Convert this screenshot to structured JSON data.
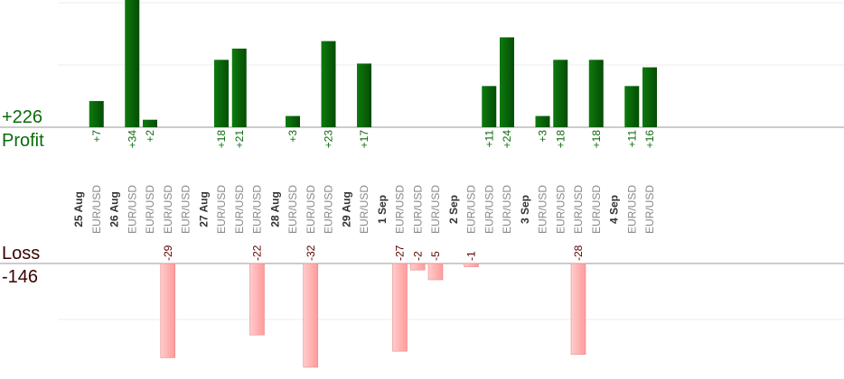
{
  "summary": {
    "profit_total": "+226",
    "profit_label": "Profit",
    "loss_label": "Loss",
    "loss_total": "-146"
  },
  "colors": {
    "profit": "#0a6b0a",
    "loss": "#ffb3b3",
    "profit_text": "#0a6b0a",
    "date_text": "#333333",
    "symbol_text": "#888888"
  },
  "chart_data": {
    "type": "bar",
    "grid": true,
    "profit_ylim": [
      0,
      34
    ],
    "loss_ylim": [
      -40,
      0
    ],
    "dates": [
      "25 Aug",
      "26 Aug",
      "27 Aug",
      "28 Aug",
      "29 Aug",
      "1 Sep",
      "2 Sep",
      "3 Sep",
      "4 Sep"
    ],
    "trades": [
      {
        "date": "25 Aug",
        "symbol": "EUR/USD",
        "profit": "+7",
        "value": 7
      },
      {
        "date": "26 Aug",
        "symbol": "EUR/USD",
        "profit": "+34",
        "value": 34
      },
      {
        "date": "26 Aug",
        "symbol": "EUR/USD",
        "profit": "+2",
        "value": 2
      },
      {
        "date": "26 Aug",
        "symbol": "EUR/USD",
        "profit": "-29",
        "value": -29
      },
      {
        "date": "26 Aug",
        "symbol": "EUR/USD",
        "profit": "",
        "value": 0
      },
      {
        "date": "27 Aug",
        "symbol": "EUR/USD",
        "profit": "+18",
        "value": 18
      },
      {
        "date": "27 Aug",
        "symbol": "EUR/USD",
        "profit": "+21",
        "value": 21
      },
      {
        "date": "27 Aug",
        "symbol": "EUR/USD",
        "profit": "-22",
        "value": -22
      },
      {
        "date": "28 Aug",
        "symbol": "EUR/USD",
        "profit": "+3",
        "value": 3
      },
      {
        "date": "28 Aug",
        "symbol": "EUR/USD",
        "profit": "-32",
        "value": -32
      },
      {
        "date": "28 Aug",
        "symbol": "EUR/USD",
        "profit": "+23",
        "value": 23
      },
      {
        "date": "29 Aug",
        "symbol": "EUR/USD",
        "profit": "+17",
        "value": 17
      },
      {
        "date": "1 Sep",
        "symbol": "EUR/USD",
        "profit": "-27",
        "value": -27
      },
      {
        "date": "1 Sep",
        "symbol": "EUR/USD",
        "profit": "-2",
        "value": -2
      },
      {
        "date": "1 Sep",
        "symbol": "EUR/USD",
        "profit": "-5",
        "value": -5
      },
      {
        "date": "2 Sep",
        "symbol": "EUR/USD",
        "profit": "-1",
        "value": -1
      },
      {
        "date": "2 Sep",
        "symbol": "EUR/USD",
        "profit": "+11",
        "value": 11
      },
      {
        "date": "2 Sep",
        "symbol": "EUR/USD",
        "profit": "+24",
        "value": 24
      },
      {
        "date": "3 Sep",
        "symbol": "EUR/USD",
        "profit": "+3",
        "value": 3
      },
      {
        "date": "3 Sep",
        "symbol": "EUR/USD",
        "profit": "+18",
        "value": 18
      },
      {
        "date": "3 Sep",
        "symbol": "EUR/USD",
        "profit": "-28",
        "value": -28
      },
      {
        "date": "3 Sep",
        "symbol": "EUR/USD",
        "profit": "+18",
        "value": 18
      },
      {
        "date": "4 Sep",
        "symbol": "EUR/USD",
        "profit": "+11",
        "value": 11
      },
      {
        "date": "4 Sep",
        "symbol": "EUR/USD",
        "profit": "+16",
        "value": 16
      }
    ]
  }
}
